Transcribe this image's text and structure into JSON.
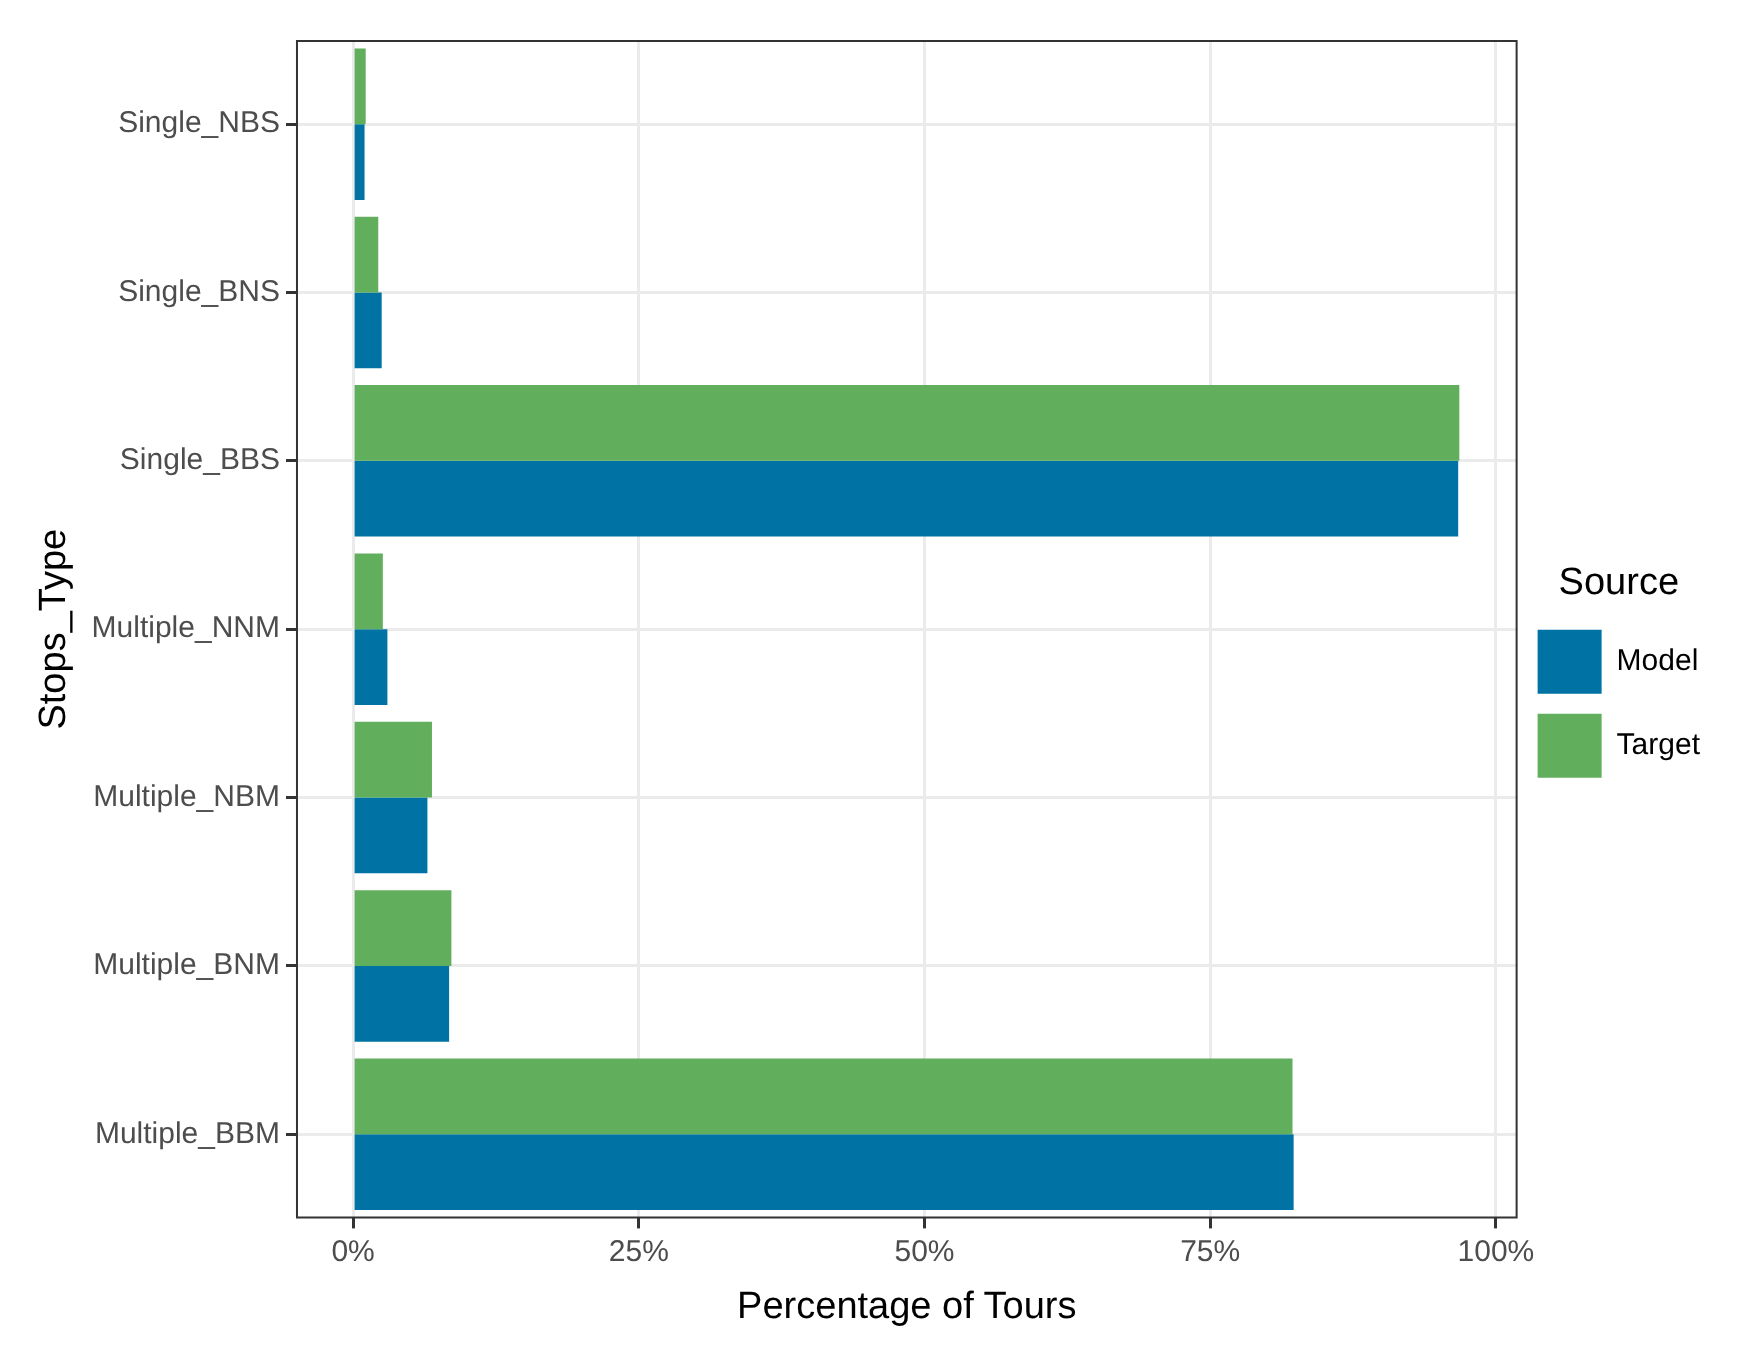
{
  "chart_data": {
    "type": "bar",
    "orientation": "horizontal",
    "xlabel": "Percentage of Tours",
    "ylabel": "Stops_Type",
    "legend_title": "Source",
    "legend": "right",
    "grid": true,
    "categories": [
      "Single_NBS",
      "Single_BNS",
      "Single_BBS",
      "Multiple_NNM",
      "Multiple_NBM",
      "Multiple_BNM",
      "Multiple_BBM"
    ],
    "xlim": [
      -5,
      101.9
    ],
    "xticks": [
      {
        "value": 0,
        "label": "0%"
      },
      {
        "value": 25,
        "label": "25%"
      },
      {
        "value": 50,
        "label": "50%"
      },
      {
        "value": 75,
        "label": "75%"
      },
      {
        "value": 100,
        "label": "100%"
      }
    ],
    "series": [
      {
        "name": "Model",
        "color": "#0072a4",
        "values": [
          1.0,
          2.5,
          96.7,
          3.0,
          6.5,
          8.4,
          82.3
        ]
      },
      {
        "name": "Target",
        "color": "#61ae5d",
        "values": [
          1.1,
          2.2,
          96.8,
          2.6,
          6.9,
          8.6,
          82.2
        ]
      }
    ]
  }
}
